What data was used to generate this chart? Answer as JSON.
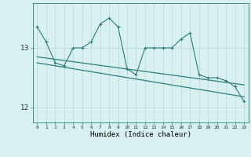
{
  "xlabel": "Humidex (Indice chaleur)",
  "x_values": [
    0,
    1,
    2,
    3,
    4,
    5,
    6,
    7,
    8,
    9,
    10,
    11,
    12,
    13,
    14,
    15,
    16,
    17,
    18,
    19,
    20,
    21,
    22,
    23
  ],
  "y_main": [
    13.35,
    13.1,
    12.75,
    12.7,
    13.0,
    13.0,
    13.1,
    13.4,
    13.5,
    13.35,
    12.65,
    12.55,
    13.0,
    13.0,
    13.0,
    13.0,
    13.15,
    13.25,
    12.55,
    12.5,
    12.5,
    12.45,
    12.35,
    12.1
  ],
  "trend_line_start": 12.85,
  "trend_line_end": 12.38,
  "trend2_start": 12.75,
  "trend2_end": 12.18,
  "bg_color": "#d8f0f0",
  "line_color": "#2d7d7d",
  "grid_color": "#b8d8d8",
  "yticks": [
    12,
    13
  ],
  "ylim": [
    11.75,
    13.75
  ],
  "xlim": [
    -0.5,
    23.5
  ]
}
